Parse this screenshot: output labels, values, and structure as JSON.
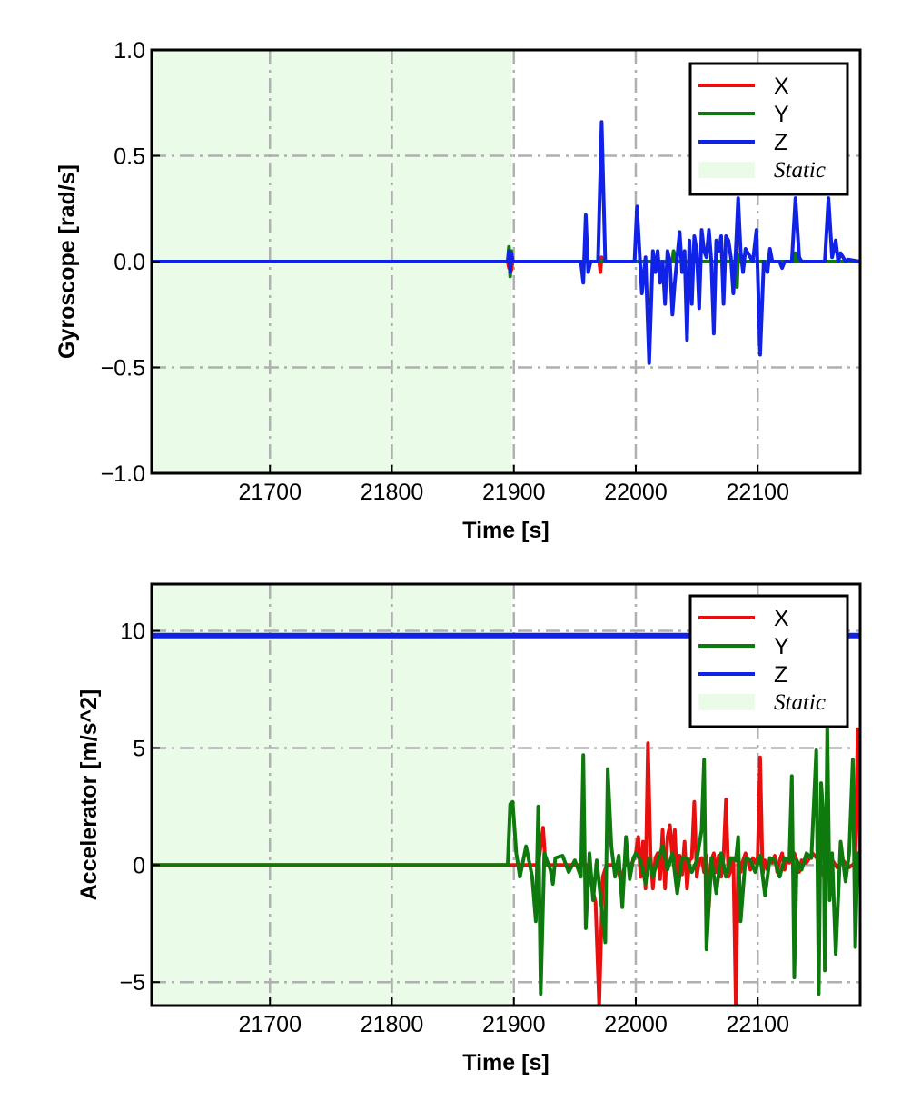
{
  "chart_data": [
    {
      "id": "gyro",
      "type": "line",
      "xlabel": "Time [s]",
      "ylabel": "Gyroscope [rad/s]",
      "xlim": [
        21603,
        22184
      ],
      "ylim": [
        -1.0,
        1.0
      ],
      "xticks": [
        21700,
        21800,
        21900,
        22000,
        22100
      ],
      "xtick_labels": [
        "21700",
        "21800",
        "21900",
        "22000",
        "22100"
      ],
      "yticks": [
        -1.0,
        -0.5,
        0.0,
        0.5,
        1.0
      ],
      "ytick_labels": [
        "−1.0",
        "−0.5",
        "0.0",
        "0.5",
        "1.0"
      ],
      "grid": true,
      "legend_position": "top-right",
      "static_region": {
        "label": "Static",
        "x_start": 21603,
        "x_end": 21898,
        "color": "#eafbe8"
      },
      "legend": [
        {
          "label": "X",
          "color": "#e8100e",
          "kind": "line"
        },
        {
          "label": "Y",
          "color": "#0e7a0e",
          "kind": "line"
        },
        {
          "label": "Z",
          "color": "#1022e6",
          "kind": "line"
        },
        {
          "label": "Static",
          "color": "#eafbe8",
          "kind": "patch"
        }
      ],
      "series": [
        {
          "name": "X",
          "color": "#e8100e",
          "x": [
            21603,
            21895,
            21896,
            21897,
            21898,
            21899,
            21970,
            21971,
            21972,
            21973,
            22184
          ],
          "y": [
            0,
            0,
            -0.03,
            0.05,
            -0.04,
            0,
            0,
            -0.05,
            0.02,
            0,
            0
          ]
        },
        {
          "name": "Y",
          "color": "#0e7a0e",
          "x": [
            21603,
            21895,
            21896,
            21897,
            21898,
            21899,
            22030,
            22031,
            22033,
            22082,
            22083,
            22084,
            22085,
            22130,
            22131,
            22133,
            22184
          ],
          "y": [
            0,
            0,
            0.07,
            -0.07,
            0.05,
            0,
            0,
            0.05,
            0,
            0,
            -0.12,
            0.03,
            0,
            0,
            0.04,
            0,
            0
          ]
        },
        {
          "name": "Z",
          "color": "#1022e6",
          "x": [
            21603,
            21895,
            21896,
            21897,
            21898,
            21899,
            21955,
            21957,
            21959,
            21961,
            21963,
            21969,
            21972,
            21975,
            21999,
            22001,
            22005,
            22008,
            22011,
            22014,
            22016,
            22018,
            22020,
            22022,
            22024,
            22026,
            22028,
            22030,
            22032,
            22034,
            22036,
            22038,
            22040,
            22042,
            22044,
            22046,
            22048,
            22050,
            22052,
            22054,
            22056,
            22058,
            22060,
            22062,
            22064,
            22066,
            22068,
            22070,
            22072,
            22074,
            22076,
            22078,
            22080,
            22082,
            22084,
            22086,
            22088,
            22090,
            22096,
            22099,
            22102,
            22105,
            22108,
            22110,
            22112,
            22118,
            22120,
            22122,
            22128,
            22131,
            22134,
            22136,
            22155,
            22158,
            22161,
            22164,
            22166,
            22168,
            22170,
            22172,
            22174,
            22184
          ],
          "y": [
            0,
            0,
            0.05,
            -0.05,
            0.04,
            0,
            0,
            -0.1,
            0.22,
            -0.05,
            0,
            0,
            0.66,
            0,
            0,
            0.26,
            -0.15,
            0.02,
            -0.48,
            0.05,
            -0.05,
            0.05,
            -0.1,
            0,
            -0.2,
            0.05,
            0,
            -0.25,
            -0.1,
            0.02,
            0.14,
            -0.05,
            0.05,
            -0.37,
            0.1,
            -0.2,
            0.12,
            0.05,
            -0.22,
            0.15,
            0.05,
            0.02,
            0.15,
            0,
            -0.34,
            0.1,
            0.05,
            0.12,
            -0.2,
            0.12,
            0.1,
            0.02,
            -0.15,
            0.05,
            0.3,
            0.05,
            -0.05,
            0.06,
            0,
            0.15,
            -0.44,
            0,
            -0.05,
            0.06,
            0,
            0,
            -0.03,
            0,
            0,
            0.3,
            0.02,
            0,
            0,
            0.3,
            0.02,
            0.1,
            0,
            0.04,
            0.02,
            0,
            0.01,
            0
          ]
        }
      ]
    },
    {
      "id": "accel",
      "type": "line",
      "xlabel": "Time [s]",
      "ylabel": "Accelerator [m/s^2]",
      "xlim": [
        21603,
        22184
      ],
      "ylim": [
        -6.0,
        12.0
      ],
      "xticks": [
        21700,
        21800,
        21900,
        22000,
        22100
      ],
      "xtick_labels": [
        "21700",
        "21800",
        "21900",
        "22000",
        "22100"
      ],
      "yticks": [
        -5,
        0,
        5,
        10
      ],
      "ytick_labels": [
        "−5",
        "0",
        "5",
        "10"
      ],
      "grid": true,
      "legend_position": "top-right",
      "static_region": {
        "label": "Static",
        "x_start": 21603,
        "x_end": 21898,
        "color": "#eafbe8"
      },
      "legend": [
        {
          "label": "X",
          "color": "#e8100e",
          "kind": "line"
        },
        {
          "label": "Y",
          "color": "#0e7a0e",
          "kind": "line"
        },
        {
          "label": "Z",
          "color": "#1022e6",
          "kind": "line"
        },
        {
          "label": "Static",
          "color": "#eafbe8",
          "kind": "patch"
        }
      ],
      "series": [
        {
          "name": "Z",
          "color": "#1022e6",
          "x": [
            21603,
            21750,
            21900,
            22000,
            22100,
            22184
          ],
          "y": [
            9.8,
            9.8,
            9.8,
            9.8,
            9.8,
            9.8
          ]
        },
        {
          "name": "X",
          "color": "#e8100e",
          "x": [
            21603,
            21895,
            21920,
            21924,
            21926,
            21960,
            21967,
            21970,
            21973,
            21976,
            21985,
            21988,
            21991,
            21996,
            21998,
            22000,
            22002,
            22004,
            22006,
            22008,
            22010,
            22012,
            22014,
            22016,
            22018,
            22020,
            22022,
            22024,
            22026,
            22028,
            22030,
            22032,
            22034,
            22036,
            22038,
            22040,
            22042,
            22044,
            22046,
            22048,
            22050,
            22052,
            22054,
            22056,
            22058,
            22060,
            22062,
            22064,
            22066,
            22068,
            22070,
            22072,
            22074,
            22076,
            22078,
            22080,
            22082,
            22084,
            22086,
            22088,
            22090,
            22092,
            22094,
            22096,
            22098,
            22100,
            22102,
            22104,
            22106,
            22108,
            22110,
            22112,
            22114,
            22116,
            22118,
            22120,
            22122,
            22124,
            22126,
            22128,
            22130,
            22132,
            22134,
            22136,
            22138,
            22140,
            22145,
            22150,
            22155,
            22160,
            22165,
            22170,
            22175,
            22180,
            22182,
            22184
          ],
          "y": [
            0,
            0,
            0,
            1.6,
            0,
            0,
            -1.6,
            -6.0,
            -0.5,
            0,
            0,
            -0.8,
            0,
            0,
            0.2,
            0.5,
            1.2,
            -0.5,
            1.0,
            -1.0,
            5.2,
            0.5,
            -1.0,
            0.3,
            0.5,
            -0.6,
            1.5,
            -1.0,
            1.2,
            1.7,
            0.3,
            1.5,
            -0.8,
            0.4,
            -0.4,
            1.0,
            -1.0,
            0.2,
            0.3,
            2.7,
            -0.5,
            0.2,
            0.3,
            -0.3,
            0.4,
            -1.8,
            0.2,
            0.5,
            -0.3,
            0.4,
            -0.5,
            0.3,
            2.8,
            -0.5,
            -0.2,
            0.3,
            -6.0,
            0.4,
            -0.3,
            0.2,
            0.5,
            0.2,
            -0.2,
            0.3,
            0.1,
            0.3,
            4.6,
            -0.4,
            0.2,
            -0.2,
            0.3,
            0.1,
            0.4,
            -0.3,
            0.2,
            0.5,
            -0.2,
            0.2,
            0.1,
            0.3,
            0.5,
            0.2,
            -0.3,
            0.2,
            0.1,
            0.1,
            0.5,
            0.2,
            -0.6,
            0.3,
            -0.1,
            0.2,
            -0.1,
            0.1,
            5.8,
            0
          ]
        },
        {
          "name": "Y",
          "color": "#0e7a0e",
          "x": [
            21603,
            21895,
            21897,
            21899,
            21902,
            21905,
            21910,
            21915,
            21918,
            21920,
            21922,
            21925,
            21930,
            21932,
            21934,
            21940,
            21945,
            21950,
            21955,
            21957,
            21959,
            21962,
            21965,
            21968,
            21975,
            21977,
            21980,
            21983,
            21986,
            21989,
            21992,
            21995,
            21998,
            22000,
            22004,
            22008,
            22011,
            22014,
            22018,
            22022,
            22026,
            22030,
            22034,
            22038,
            22042,
            22046,
            22050,
            22054,
            22056,
            22058,
            22062,
            22066,
            22070,
            22074,
            22078,
            22082,
            22084,
            22086,
            22090,
            22094,
            22098,
            22102,
            22106,
            22110,
            22114,
            22118,
            22122,
            22126,
            22128,
            22130,
            22132,
            22136,
            22140,
            22144,
            22148,
            22150,
            22152,
            22154,
            22155,
            22157,
            22159,
            22161,
            22164,
            22168,
            22172,
            22175,
            22178,
            22180,
            22182,
            22184
          ],
          "y": [
            0,
            0,
            2.6,
            2.7,
            0.5,
            -0.5,
            0.8,
            -0.5,
            -2.4,
            2.5,
            -5.5,
            0.5,
            -0.2,
            -0.8,
            0.3,
            0.4,
            -0.3,
            0.2,
            -0.5,
            4.7,
            -2.7,
            0.5,
            -1.5,
            0.2,
            -3.3,
            4.1,
            0.8,
            -0.5,
            0.4,
            -1.8,
            1.2,
            -0.6,
            0.3,
            0.5,
            0.2,
            -0.8,
            0.3,
            -0.5,
            0.2,
            0.8,
            -0.2,
            0.5,
            -1.2,
            0.3,
            0.3,
            -0.3,
            0.2,
            1.5,
            4.5,
            -3.6,
            0.3,
            -1.2,
            0.5,
            -0.5,
            0.3,
            0.2,
            1.2,
            -2.4,
            0.3,
            0.2,
            -0.3,
            0.4,
            -1.3,
            0.3,
            0.2,
            -0.5,
            0.3,
            0.2,
            3.8,
            -4.8,
            0.2,
            -0.2,
            0.5,
            0.3,
            4.9,
            -5.5,
            3.5,
            2.0,
            -4.5,
            6.0,
            -1.5,
            0.5,
            -3.8,
            1.0,
            -0.7,
            0.5,
            4.5,
            -3.5,
            0.5,
            0
          ]
        }
      ]
    }
  ]
}
